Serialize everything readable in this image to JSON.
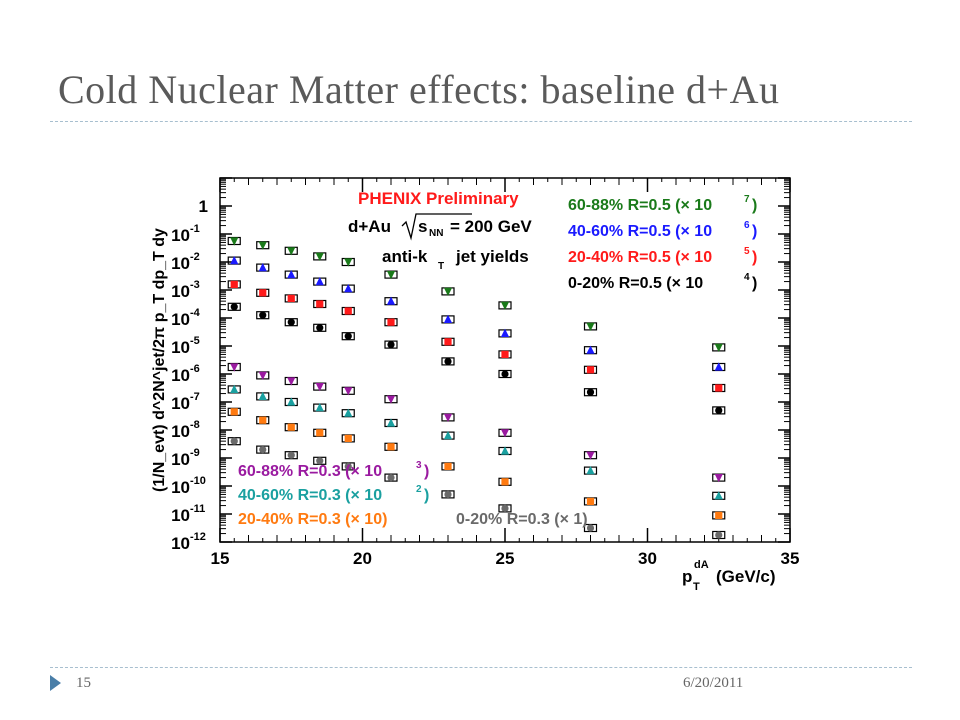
{
  "slide": {
    "title": "Cold Nuclear Matter effects: baseline d+Au",
    "page_number": "15",
    "date": "6/20/2011"
  },
  "colors": {
    "accent_rule": "#a8bfcf",
    "footer_triangle": "#4a7ea8",
    "red": "#ff1a1a",
    "green": "#1a7a1a",
    "blue": "#1a1aff",
    "black": "#000000",
    "purple": "#9a1aa0",
    "teal": "#1aa0a0",
    "orange": "#ff7a10",
    "gray": "#6a6a6a"
  },
  "chart_data": {
    "type": "scatter",
    "scale_y": "log",
    "xlim": [
      15,
      35
    ],
    "ylim_exp": [
      -12,
      1
    ],
    "x_ticks": [
      "15",
      "20",
      "25",
      "30",
      "35"
    ],
    "y_ticks": [
      "10^-12",
      "10^-11",
      "10^-10",
      "10^-9",
      "10^-8",
      "10^-7",
      "10^-6",
      "10^-5",
      "10^-4",
      "10^-3",
      "10^-2",
      "10^-1",
      "1"
    ],
    "xlabel": {
      "main": "p",
      "sub": "T",
      "sup": "dA",
      "unit": "(GeV/c)"
    },
    "ylabel": "(1/N_evt) d^2N^jet/2π p_T dp_T dy",
    "annotations": {
      "preliminary": "PHENIX Preliminary",
      "system": "d+Au",
      "energy": "= 200 GeV",
      "energy_sqrt": "s",
      "energy_sub": "NN",
      "algo": "anti-k",
      "algo_sub": "T",
      "algo_tail": "jet yields"
    },
    "legend_top_right": [
      {
        "label": "60-88% R=0.5 (× 10",
        "power": "7",
        "color": "#1a7a1a"
      },
      {
        "label": "40-60% R=0.5 (× 10",
        "power": "6",
        "color": "#1a1aff"
      },
      {
        "label": "20-40% R=0.5 (× 10",
        "power": "5",
        "color": "#ff1a1a"
      },
      {
        "label": "0-20% R=0.5 (× 10",
        "power": "4",
        "color": "#000000"
      }
    ],
    "legend_bottom_left": [
      {
        "label": "60-88% R=0.3 (× 10",
        "power": "3",
        "color": "#9a1aa0"
      },
      {
        "label": "40-60% R=0.3 (× 10",
        "power": "2",
        "color": "#1aa0a0"
      },
      {
        "label": "20-40% R=0.3 (× 10)",
        "power": "",
        "color": "#ff7a10"
      }
    ],
    "legend_bottom_right": {
      "label": "0-20% R=0.3 (× 1)",
      "color": "#6a6a6a"
    },
    "x": [
      15.5,
      16.5,
      17.5,
      18.5,
      19.5,
      21,
      23,
      25,
      28,
      32.5
    ],
    "series": [
      {
        "name": "60-88% R=0.5 (× 10^7)",
        "color": "#1a7a1a",
        "marker": "triangle-down",
        "y_log10": [
          -1.25,
          -1.4,
          -1.6,
          -1.8,
          -2.0,
          -2.45,
          -3.05,
          -3.55,
          -4.3,
          -5.05
        ]
      },
      {
        "name": "40-60% R=0.5 (× 10^6)",
        "color": "#1a1aff",
        "marker": "triangle-up",
        "y_log10": [
          -1.95,
          -2.2,
          -2.45,
          -2.7,
          -2.95,
          -3.4,
          -4.05,
          -4.55,
          -5.15,
          -5.75
        ]
      },
      {
        "name": "20-40% R=0.5 (× 10^5)",
        "color": "#ff1a1a",
        "marker": "square",
        "y_log10": [
          -2.8,
          -3.1,
          -3.3,
          -3.5,
          -3.75,
          -4.15,
          -4.85,
          -5.3,
          -5.85,
          -6.5
        ]
      },
      {
        "name": "0-20% R=0.5 (× 10^4)",
        "color": "#000000",
        "marker": "circle",
        "y_log10": [
          -3.6,
          -3.9,
          -4.15,
          -4.35,
          -4.65,
          -4.95,
          -5.55,
          -6.0,
          -6.65,
          -7.3
        ]
      },
      {
        "name": "60-88% R=0.3 (× 10^3)",
        "color": "#9a1aa0",
        "marker": "triangle-down",
        "y_log10": [
          -5.75,
          -6.05,
          -6.25,
          -6.45,
          -6.6,
          -6.9,
          -7.55,
          -8.1,
          -8.9,
          -9.7
        ]
      },
      {
        "name": "40-60% R=0.3 (× 10^2)",
        "color": "#1aa0a0",
        "marker": "triangle-up",
        "y_log10": [
          -6.55,
          -6.8,
          -7.0,
          -7.2,
          -7.4,
          -7.75,
          -8.2,
          -8.75,
          -9.45,
          -10.35
        ]
      },
      {
        "name": "20-40% R=0.3 (× 10)",
        "color": "#ff7a10",
        "marker": "square",
        "y_log10": [
          -7.35,
          -7.65,
          -7.9,
          -8.1,
          -8.3,
          -8.6,
          -9.3,
          -9.85,
          -10.55,
          -11.05
        ]
      },
      {
        "name": "0-20% R=0.3 (× 1)",
        "color": "#6a6a6a",
        "marker": "circle",
        "y_log10": [
          -8.4,
          -8.7,
          -8.9,
          -9.1,
          -9.3,
          -9.7,
          -10.3,
          -10.8,
          -11.5,
          -11.75
        ]
      }
    ]
  }
}
